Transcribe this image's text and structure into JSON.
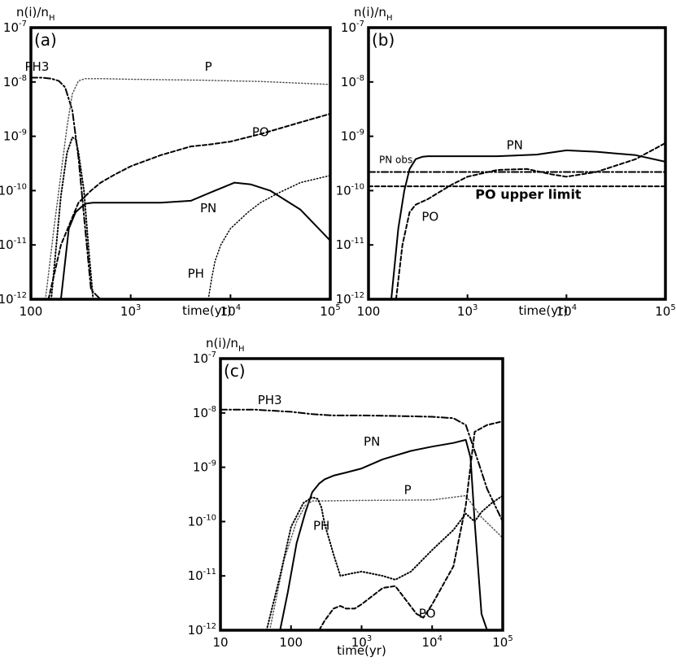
{
  "chart_data": [
    {
      "type": "line",
      "panel_label": "(a)",
      "ylabel": "n(i)/n",
      "ylabel_sub": "H",
      "xlabel": "time(yr)",
      "x_scale": "log",
      "y_scale": "log",
      "xlim": [
        100,
        100000
      ],
      "ylim": [
        1e-12,
        1e-07
      ],
      "x_ticks": [
        {
          "value": 100,
          "base": "100",
          "exp": ""
        },
        {
          "value": 1000,
          "base": "10",
          "exp": "3"
        },
        {
          "value": 10000,
          "base": "10",
          "exp": "4"
        },
        {
          "value": 100000,
          "base": "10",
          "exp": "5"
        }
      ],
      "y_ticks": [
        {
          "value": 1e-07,
          "base": "10",
          "exp": "-7"
        },
        {
          "value": 1e-08,
          "base": "10",
          "exp": "-8"
        },
        {
          "value": 1e-09,
          "base": "10",
          "exp": "-9"
        },
        {
          "value": 1e-10,
          "base": "10",
          "exp": "-10"
        },
        {
          "value": 1e-11,
          "base": "10",
          "exp": "-11"
        },
        {
          "value": 1e-12,
          "base": "10",
          "exp": "-12"
        }
      ],
      "grid": false,
      "series": [
        {
          "name": "PH3",
          "style": "dashdot",
          "width": 2,
          "color": "#000000",
          "x": [
            100,
            130,
            160,
            190,
            220,
            260,
            300,
            350,
            400,
            450,
            500
          ],
          "y": [
            1.2e-08,
            1.2e-08,
            1.15e-08,
            1.05e-08,
            8e-09,
            3e-09,
            4e-10,
            2e-11,
            1.5e-12,
            1.2e-12,
            1e-12
          ]
        },
        {
          "name": "P",
          "style": "dot",
          "width": 1.5,
          "color": "#555555",
          "x": [
            140,
            170,
            200,
            230,
            260,
            300,
            350,
            500,
            1000,
            5000,
            20000,
            100000
          ],
          "y": [
            1e-12,
            2e-11,
            2e-10,
            1.5e-09,
            6e-09,
            1.05e-08,
            1.15e-08,
            1.15e-08,
            1.12e-08,
            1.08e-08,
            1.02e-08,
            9e-09
          ]
        },
        {
          "name": "PO",
          "style": "dash",
          "width": 2,
          "color": "#000000",
          "x": [
            150,
            200,
            300,
            400,
            500,
            700,
            1000,
            2000,
            4000,
            6000,
            10000,
            20000,
            50000,
            100000
          ],
          "y": [
            1e-12,
            1e-11,
            6e-11,
            1e-10,
            1.4e-10,
            2e-10,
            2.8e-10,
            4.5e-10,
            6.5e-10,
            7e-10,
            8e-10,
            1.1e-09,
            1.8e-09,
            2.6e-09
          ]
        },
        {
          "name": "",
          "style": "dot",
          "width": 2,
          "color": "#000000",
          "x": [
            160,
            200,
            230,
            260,
            280,
            300,
            340,
            380,
            420
          ],
          "y": [
            1e-12,
            8e-11,
            5e-10,
            9.5e-10,
            9e-10,
            5e-10,
            1e-10,
            8e-12,
            1e-12
          ]
        },
        {
          "name": "PN",
          "style": "solid",
          "width": 2,
          "color": "#000000",
          "x": [
            200,
            240,
            280,
            320,
            360,
            420,
            600,
            1000,
            2000,
            4000,
            7000,
            11000,
            16000,
            25000,
            50000,
            100000
          ],
          "y": [
            1e-12,
            2e-11,
            4e-11,
            5e-11,
            5.8e-11,
            6e-11,
            6e-11,
            6e-11,
            6e-11,
            6.5e-11,
            1e-10,
            1.4e-10,
            1.3e-10,
            1e-10,
            4.5e-11,
            1.2e-11
          ]
        },
        {
          "name": "PH",
          "style": "dot",
          "width": 1.5,
          "color": "#000000",
          "x": [
            6000,
            6500,
            7000,
            8000,
            10000,
            15000,
            20000,
            30000,
            50000,
            100000
          ],
          "y": [
            1e-12,
            2.5e-12,
            5e-12,
            1e-11,
            2e-11,
            4e-11,
            6e-11,
            9e-11,
            1.4e-10,
            1.9e-10
          ]
        }
      ],
      "labels": [
        {
          "text": "PH3",
          "x": 115,
          "y": 1.6e-08
        },
        {
          "text": "P",
          "x": 6000,
          "y": 1.6e-08
        },
        {
          "text": "PO",
          "x": 20000,
          "y": 1e-09
        },
        {
          "text": "PN",
          "x": 6000,
          "y": 4e-11
        },
        {
          "text": "PH",
          "x": 4500,
          "y": 2.5e-12
        }
      ],
      "annotations": []
    },
    {
      "type": "line",
      "panel_label": "(b)",
      "ylabel": "n(i)/n",
      "ylabel_sub": "H",
      "xlabel": "time(yr)",
      "x_scale": "log",
      "y_scale": "log",
      "xlim": [
        100,
        100000
      ],
      "ylim": [
        1e-12,
        1e-07
      ],
      "x_ticks": [
        {
          "value": 100,
          "base": "100",
          "exp": ""
        },
        {
          "value": 1000,
          "base": "10",
          "exp": "3"
        },
        {
          "value": 10000,
          "base": "10",
          "exp": "4"
        },
        {
          "value": 100000,
          "base": "10",
          "exp": "5"
        }
      ],
      "y_ticks": [
        {
          "value": 1e-07,
          "base": "10",
          "exp": "-7"
        },
        {
          "value": 1e-08,
          "base": "10",
          "exp": "-8"
        },
        {
          "value": 1e-09,
          "base": "10",
          "exp": "-9"
        },
        {
          "value": 1e-10,
          "base": "10",
          "exp": "-10"
        },
        {
          "value": 1e-11,
          "base": "10",
          "exp": "-11"
        },
        {
          "value": 1e-12,
          "base": "10",
          "exp": "-12"
        }
      ],
      "grid": false,
      "series": [
        {
          "name": "PN obs",
          "style": "dashdot",
          "width": 2,
          "color": "#000000",
          "x": [
            100,
            100000
          ],
          "y": [
            2.2e-10,
            2.2e-10
          ]
        },
        {
          "name": "PO upper limit",
          "style": "dash",
          "width": 2,
          "color": "#000000",
          "x": [
            100,
            100000
          ],
          "y": [
            1.2e-10,
            1.2e-10
          ]
        },
        {
          "name": "PN",
          "style": "solid",
          "width": 2,
          "color": "#000000",
          "x": [
            170,
            200,
            230,
            260,
            300,
            350,
            400,
            500,
            1000,
            2000,
            5000,
            10000,
            20000,
            50000,
            100000
          ],
          "y": [
            1e-12,
            2e-11,
            1e-10,
            2.5e-10,
            3.8e-10,
            4.2e-10,
            4.3e-10,
            4.3e-10,
            4.3e-10,
            4.3e-10,
            4.6e-10,
            5.5e-10,
            5.2e-10,
            4.5e-10,
            3.4e-10
          ]
        },
        {
          "name": "PO",
          "style": "dash",
          "width": 2,
          "color": "#000000",
          "x": [
            190,
            220,
            260,
            300,
            400,
            500,
            700,
            1000,
            2000,
            4000,
            7000,
            10000,
            20000,
            50000,
            100000
          ],
          "y": [
            1e-12,
            1e-11,
            4e-11,
            5.5e-11,
            7e-11,
            9e-11,
            1.3e-10,
            1.8e-10,
            2.4e-10,
            2.5e-10,
            2e-10,
            1.8e-10,
            2.2e-10,
            3.8e-10,
            7.5e-10
          ]
        }
      ],
      "labels": [
        {
          "text": "PN",
          "x": 3000,
          "y": 5.8e-10
        },
        {
          "text": "PO",
          "x": 420,
          "y": 2.8e-11
        }
      ],
      "annotations": [
        {
          "text": "PN obs",
          "x": 128,
          "y": 3.2e-10,
          "size": "small"
        },
        {
          "text": "PO upper limit",
          "x": 1200,
          "y": 7e-11,
          "size": "bold"
        }
      ]
    },
    {
      "type": "line",
      "panel_label": "(c)",
      "ylabel": "n(i)/n",
      "ylabel_sub": "H",
      "xlabel": "time(yr)",
      "x_scale": "log",
      "y_scale": "log",
      "xlim": [
        10,
        100000
      ],
      "ylim": [
        1e-12,
        1e-07
      ],
      "x_ticks": [
        {
          "value": 10,
          "base": "10",
          "exp": ""
        },
        {
          "value": 100,
          "base": "100",
          "exp": ""
        },
        {
          "value": 1000,
          "base": "10",
          "exp": "3"
        },
        {
          "value": 10000,
          "base": "10",
          "exp": "4"
        },
        {
          "value": 100000,
          "base": "10",
          "exp": "5"
        }
      ],
      "y_ticks": [
        {
          "value": 1e-07,
          "base": "10",
          "exp": "-7"
        },
        {
          "value": 1e-08,
          "base": "10",
          "exp": "-8"
        },
        {
          "value": 1e-09,
          "base": "10",
          "exp": "-9"
        },
        {
          "value": 1e-10,
          "base": "10",
          "exp": "-10"
        },
        {
          "value": 1e-11,
          "base": "10",
          "exp": "-11"
        },
        {
          "value": 1e-12,
          "base": "10",
          "exp": "-12"
        }
      ],
      "grid": false,
      "series": [
        {
          "name": "PH3",
          "style": "dashdot",
          "width": 2,
          "color": "#000000",
          "x": [
            10,
            30,
            100,
            200,
            400,
            1000,
            3000,
            10000,
            20000,
            30000,
            40000,
            60000,
            100000
          ],
          "y": [
            1.15e-08,
            1.15e-08,
            1.05e-08,
            9.5e-09,
            9e-09,
            9e-09,
            8.8e-09,
            8.5e-09,
            8e-09,
            6e-09,
            2e-09,
            4e-10,
            1e-10
          ]
        },
        {
          "name": "PN",
          "style": "solid",
          "width": 2,
          "color": "#000000",
          "x": [
            70,
            90,
            120,
            160,
            200,
            250,
            300,
            400,
            600,
            1000,
            2000,
            5000,
            10000,
            20000,
            30000,
            35000,
            40000,
            50000,
            60000
          ],
          "y": [
            1e-12,
            5e-12,
            4e-11,
            1.5e-10,
            3.5e-10,
            5e-10,
            6e-10,
            7e-10,
            8e-10,
            9.5e-10,
            1.4e-09,
            2e-09,
            2.4e-09,
            2.8e-09,
            3.2e-09,
            1.5e-09,
            1e-10,
            2e-12,
            1e-12
          ]
        },
        {
          "name": "P",
          "style": "dot",
          "width": 1.5,
          "color": "#555555",
          "x": [
            50,
            80,
            120,
            160,
            200,
            240,
            300,
            1000,
            10000,
            30000,
            50000,
            100000
          ],
          "y": [
            1e-12,
            2e-11,
            1e-10,
            2e-10,
            2.4e-10,
            2.4e-10,
            2.4e-10,
            2.45e-10,
            2.5e-10,
            3e-10,
            1.2e-10,
            5e-11
          ]
        },
        {
          "name": "PH",
          "style": "dot",
          "width": 2,
          "color": "#000000",
          "x": [
            45,
            70,
            100,
            150,
            200,
            240,
            270,
            300,
            400,
            500,
            700,
            1000,
            2000,
            3000,
            5000,
            10000,
            20000,
            30000,
            40000,
            50000,
            70000,
            100000
          ],
          "y": [
            1e-12,
            1e-11,
            8e-11,
            2.2e-10,
            2.8e-10,
            2.6e-10,
            1.8e-10,
            9e-11,
            2.5e-11,
            1e-11,
            1.1e-11,
            1.2e-11,
            1e-11,
            8.5e-12,
            1.2e-11,
            3e-11,
            7e-11,
            1.4e-10,
            1e-10,
            1.5e-10,
            2.2e-10,
            3e-10
          ]
        },
        {
          "name": "PO",
          "style": "dash",
          "width": 2,
          "color": "#000000",
          "x": [
            250,
            300,
            400,
            500,
            600,
            800,
            1000,
            2000,
            3000,
            4000,
            6000,
            7500,
            10000,
            20000,
            30000,
            40000,
            60000,
            100000
          ],
          "y": [
            1e-12,
            1.5e-12,
            2.5e-12,
            2.8e-12,
            2.5e-12,
            2.5e-12,
            3e-12,
            6e-12,
            6.5e-12,
            4e-12,
            2e-12,
            1.7e-12,
            3e-12,
            1.5e-11,
            2e-10,
            4.5e-09,
            6e-09,
            7e-09
          ]
        }
      ],
      "labels": [
        {
          "text": "PH3",
          "x": 50,
          "y": 1.45e-08
        },
        {
          "text": "PN",
          "x": 1400,
          "y": 2.5e-09
        },
        {
          "text": "P",
          "x": 4500,
          "y": 3.2e-10
        },
        {
          "text": "PH",
          "x": 270,
          "y": 7e-11
        },
        {
          "text": "PO",
          "x": 8500,
          "y": 1.7e-12
        }
      ],
      "annotations": []
    }
  ]
}
